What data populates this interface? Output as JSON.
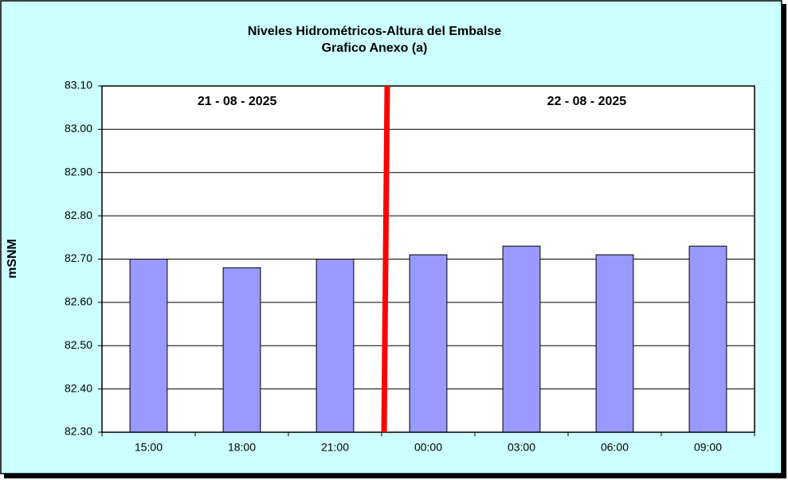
{
  "chart_data": {
    "type": "bar",
    "title": "Niveles Hidrométricos-Altura del Embalse",
    "subtitle": "Grafico Anexo (a)",
    "y_label": "mSNM",
    "annotations": [
      "21 - 08 - 2025",
      "22 - 08 - 2025"
    ],
    "categories": [
      "15:00",
      "18:00",
      "21:00",
      "00:00",
      "03:00",
      "06:00",
      "09:00"
    ],
    "values": [
      82.7,
      82.68,
      82.7,
      82.71,
      82.73,
      82.71,
      82.73
    ],
    "color": "#9999ff",
    "ylim": [
      82.3,
      83.1
    ],
    "yticks": [
      {
        "value": 82.3,
        "label": "82.30"
      },
      {
        "value": 82.4,
        "label": "82.40"
      },
      {
        "value": 82.5,
        "label": "82.50"
      },
      {
        "value": 82.6,
        "label": "82.60"
      },
      {
        "value": 82.7,
        "label": "82.70"
      },
      {
        "value": 82.8,
        "label": "82.80"
      },
      {
        "value": 82.9,
        "label": "82.90"
      },
      {
        "value": 83.0,
        "label": "83.00"
      },
      {
        "value": 83.1,
        "label": "83.10"
      }
    ],
    "grid": true
  }
}
